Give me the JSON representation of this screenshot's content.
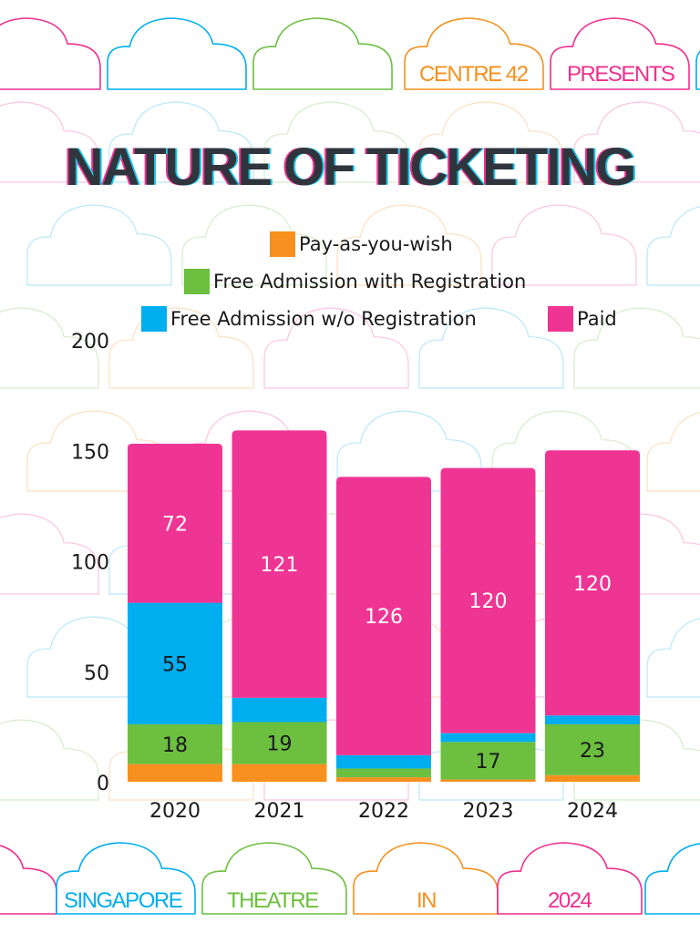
{
  "header_tags": [
    {
      "text": "CENTRE 42",
      "color": "#f5901e"
    },
    {
      "text": "PRESENTS",
      "color": "#ef2f8e"
    }
  ],
  "footer_tags": [
    {
      "text": "SINGAPORE",
      "color": "#00aeef"
    },
    {
      "text": "THEATRE",
      "color": "#6cbf3f"
    },
    {
      "text": "IN",
      "color": "#f5901e"
    },
    {
      "text": "2024",
      "color": "#ef2f8e"
    }
  ],
  "colors": {
    "pay_as_you_wish": "#f7901e",
    "free_with_registration": "#6cbf3f",
    "free_without_registration": "#00aeef",
    "paid": "#ef3594"
  },
  "chart_data": {
    "type": "bar",
    "stacked": true,
    "title": "NATURE OF TICKETING",
    "categories": [
      "2020",
      "2021",
      "2022",
      "2023",
      "2024"
    ],
    "series": [
      {
        "name": "Pay-as-you-wish",
        "color": "#f7901e",
        "values": [
          8,
          8,
          2,
          1,
          3
        ],
        "labels": [
          "",
          "",
          "",
          "",
          ""
        ]
      },
      {
        "name": "Free Admission with Registration",
        "color": "#6cbf3f",
        "values": [
          18,
          19,
          4,
          17,
          23
        ],
        "labels": [
          "18",
          "19",
          "",
          "17",
          "23"
        ]
      },
      {
        "name": "Free Admission w/o Registration",
        "color": "#00aeef",
        "values": [
          55,
          11,
          6,
          4,
          4
        ],
        "labels": [
          "55",
          "",
          "",
          "",
          ""
        ]
      },
      {
        "name": "Paid",
        "color": "#ef3594",
        "values": [
          72,
          121,
          126,
          120,
          120
        ],
        "labels": [
          "72",
          "121",
          "126",
          "120",
          "120"
        ]
      }
    ],
    "yticks": [
      "0",
      "50",
      "100",
      "150",
      "200"
    ],
    "ylim": [
      0,
      200
    ],
    "legend_position": "top",
    "grid": false
  }
}
